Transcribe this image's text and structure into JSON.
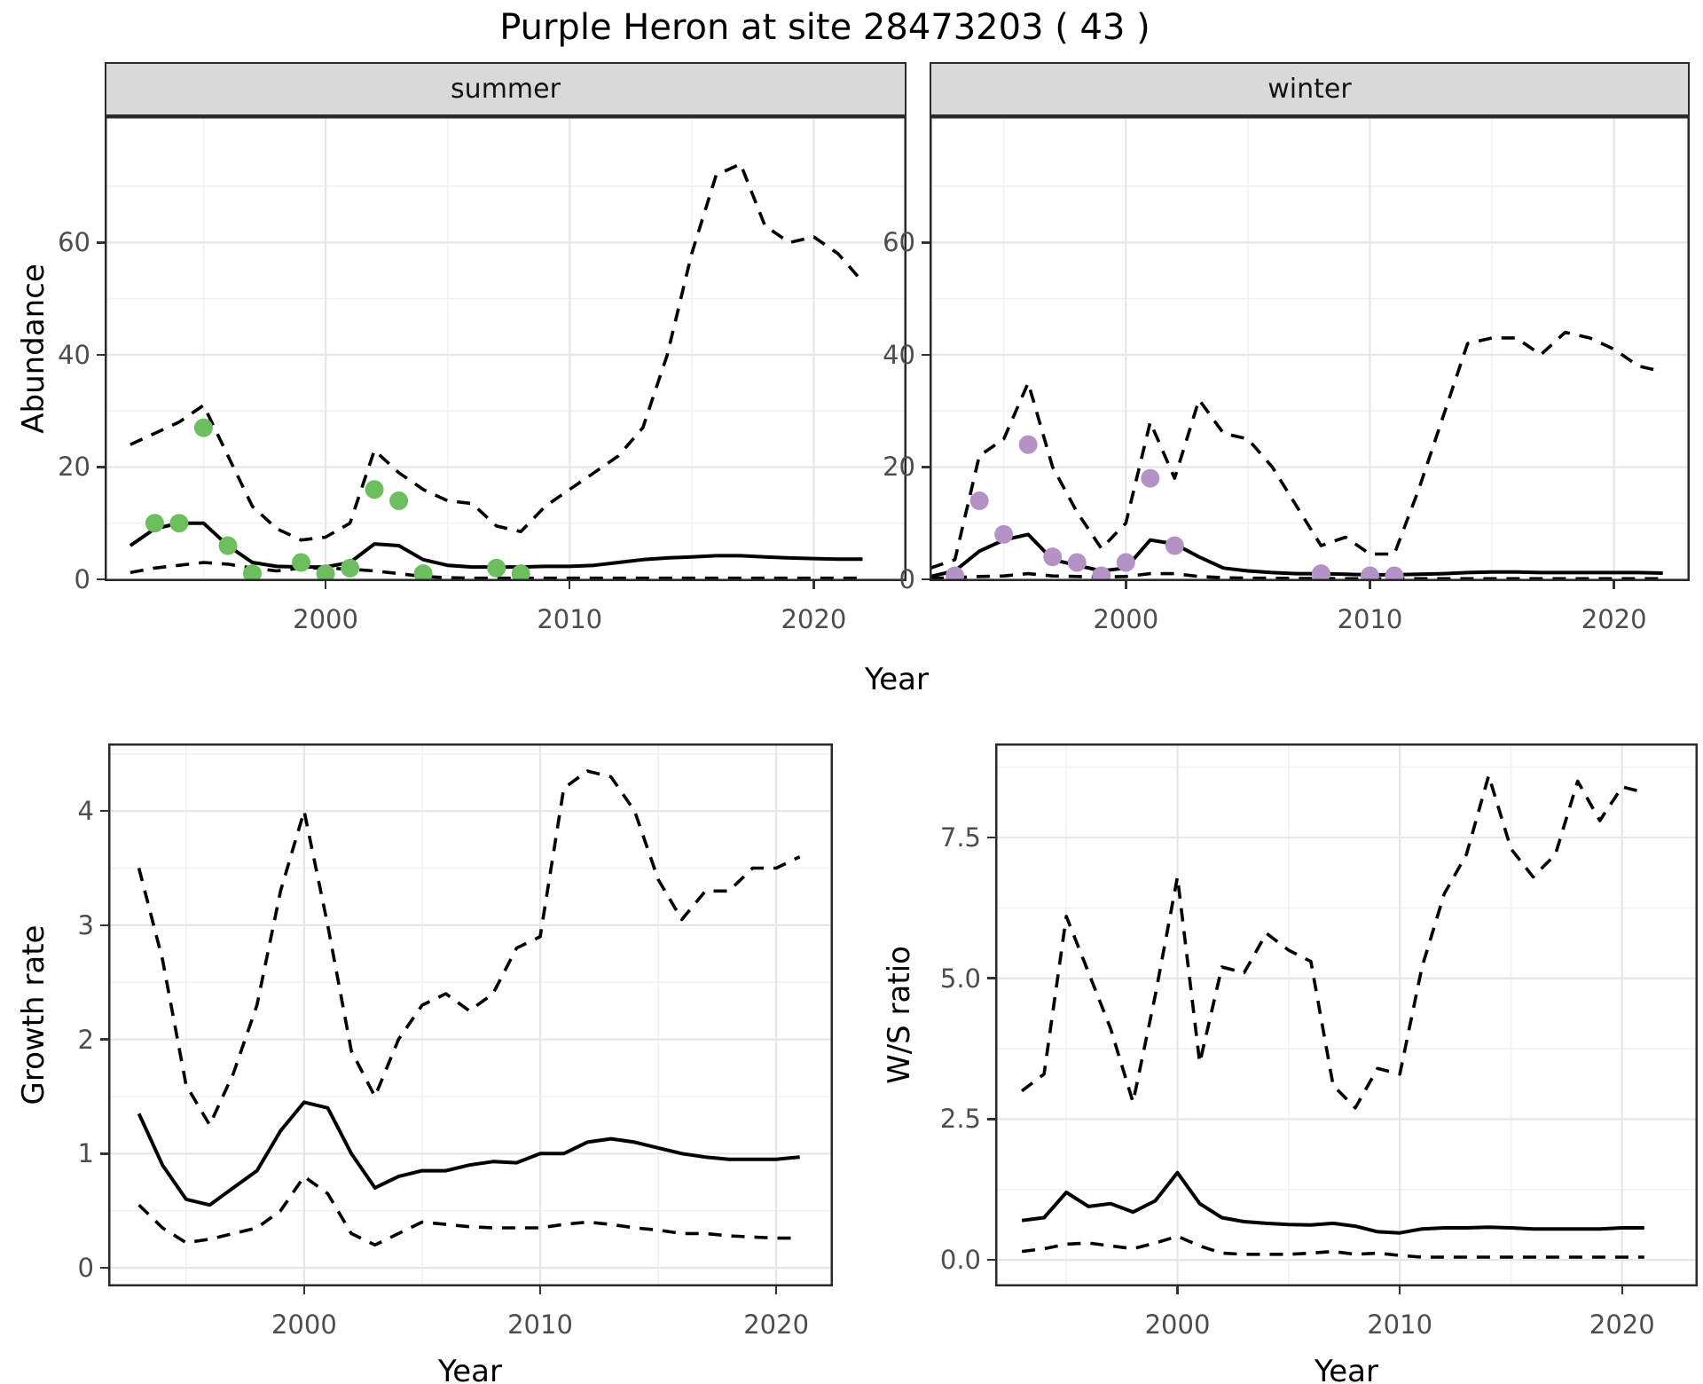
{
  "title": "Purple Heron at site 28473203 ( 43 )",
  "facets": [
    {
      "label": "summer"
    },
    {
      "label": "winter"
    }
  ],
  "axes": {
    "x_label": "Year",
    "abundance_label": "Abundance",
    "growth_label": "Growth rate",
    "ws_label": "W/S ratio"
  },
  "colors": {
    "line": "#000000",
    "summer_points": "#6cbe5e",
    "winter_points": "#b592c6",
    "grid_major": "#e6e6e6",
    "grid_minor": "#f1f1f1",
    "strip_bg": "#d9d9d9",
    "panel_border": "#2a2a2a",
    "axis_text": "#4d4d4d"
  },
  "chart_data": [
    {
      "id": "abundance-summer",
      "type": "line",
      "strip": "summer",
      "xlabel": "Year",
      "ylabel": "Abundance",
      "xlim": [
        1990.95,
        2023.8
      ],
      "ylim": [
        -0.32,
        82.5
      ],
      "x_ticks": [
        2000,
        2010,
        2020
      ],
      "x_tick_labels": [
        "2000",
        "2010",
        "2020"
      ],
      "x_minor": [
        1995,
        2005,
        2015
      ],
      "y_ticks": [
        0,
        20,
        40,
        60
      ],
      "y_tick_labels": [
        "0",
        "20",
        "40",
        "60"
      ],
      "y_minor": [
        10,
        30,
        50,
        70
      ],
      "years": [
        1992,
        1993,
        1994,
        1995,
        1996,
        1997,
        1998,
        1999,
        2000,
        2001,
        2002,
        2003,
        2004,
        2005,
        2006,
        2007,
        2008,
        2009,
        2010,
        2011,
        2012,
        2013,
        2014,
        2015,
        2016,
        2017,
        2018,
        2019,
        2020,
        2021,
        2022
      ],
      "series": [
        {
          "name": "median",
          "style": "solid",
          "values": [
            6,
            9,
            10,
            10,
            6,
            3,
            2.3,
            2.2,
            2.2,
            3,
            6.3,
            6,
            3.5,
            2.5,
            2.2,
            2.2,
            2.2,
            2.3,
            2.3,
            2.5,
            3,
            3.5,
            3.8,
            4,
            4.2,
            4.2,
            4,
            3.8,
            3.7,
            3.6,
            3.6
          ]
        },
        {
          "name": "lower_ci",
          "style": "dashed",
          "values": [
            1.2,
            2,
            2.5,
            3,
            2.7,
            2,
            1.5,
            2,
            2,
            1.8,
            1.5,
            1,
            0.5,
            0.3,
            0.2,
            0.2,
            0.2,
            0.2,
            0.2,
            0.2,
            0.2,
            0.2,
            0.2,
            0.2,
            0.2,
            0.2,
            0.2,
            0.2,
            0.2,
            0.2,
            0.2
          ]
        },
        {
          "name": "upper_ci",
          "style": "dashed",
          "values": [
            24,
            26,
            28,
            31,
            22,
            13,
            9,
            7,
            7.5,
            10,
            23,
            19,
            16,
            14,
            13.5,
            9.5,
            8.5,
            13,
            16,
            19,
            22,
            27,
            40,
            58,
            72,
            74,
            63,
            60,
            61,
            58,
            53
          ]
        }
      ],
      "observations": {
        "name": "summer-observations",
        "color": "#6cbe5e",
        "points": [
          [
            1993,
            10
          ],
          [
            1994,
            10
          ],
          [
            1995,
            27
          ],
          [
            1996,
            6
          ],
          [
            1997,
            1
          ],
          [
            1999,
            3
          ],
          [
            2000,
            1
          ],
          [
            2001,
            2
          ],
          [
            2002,
            16
          ],
          [
            2003,
            14
          ],
          [
            2004,
            1
          ],
          [
            2007,
            2
          ],
          [
            2008,
            1
          ]
        ]
      }
    },
    {
      "id": "abundance-winter",
      "type": "line",
      "strip": "winter",
      "xlabel": "Year",
      "ylabel": "Abundance",
      "xlim": [
        1991.96,
        2023.1
      ],
      "ylim": [
        -0.32,
        82.5
      ],
      "x_ticks": [
        2000,
        2010,
        2020
      ],
      "x_tick_labels": [
        "2000",
        "2010",
        "2020"
      ],
      "x_minor": [
        1995,
        2005,
        2015
      ],
      "y_ticks": [
        0,
        20,
        40,
        60
      ],
      "y_tick_labels": [
        "0",
        "20",
        "40",
        "60"
      ],
      "y_minor": [
        10,
        30,
        50,
        70
      ],
      "years": [
        1992,
        1993,
        1994,
        1995,
        1996,
        1997,
        1998,
        1999,
        2000,
        2001,
        2002,
        2003,
        2004,
        2005,
        2006,
        2007,
        2008,
        2009,
        2010,
        2011,
        2012,
        2013,
        2014,
        2015,
        2016,
        2017,
        2018,
        2019,
        2020,
        2021,
        2022
      ],
      "series": [
        {
          "name": "median",
          "style": "solid",
          "values": [
            0.5,
            1.5,
            5,
            7,
            8,
            3.5,
            2.5,
            1.5,
            2,
            7,
            6.3,
            4,
            2,
            1.5,
            1.2,
            1,
            1,
            0.9,
            0.8,
            0.8,
            0.9,
            1,
            1.2,
            1.3,
            1.3,
            1.2,
            1.2,
            1.2,
            1.2,
            1.2,
            1.1
          ]
        },
        {
          "name": "lower_ci",
          "style": "dashed",
          "values": [
            0.15,
            0.3,
            0.5,
            0.6,
            1,
            0.6,
            0.5,
            0.4,
            0.5,
            1,
            1,
            0.5,
            0.3,
            0.2,
            0.2,
            0.15,
            0.15,
            0.1,
            0.1,
            0.1,
            0.1,
            0.1,
            0.1,
            0.1,
            0.1,
            0.1,
            0.1,
            0.1,
            0.1,
            0.1,
            0.1
          ]
        },
        {
          "name": "upper_ci",
          "style": "dashed",
          "values": [
            2,
            3.5,
            22,
            25,
            35,
            20,
            12,
            5.5,
            10,
            28,
            18,
            32,
            26,
            25,
            20,
            13,
            6,
            7.5,
            4.5,
            4.5,
            16,
            29,
            42,
            43,
            43,
            40,
            44,
            43,
            41,
            38,
            37
          ]
        }
      ],
      "observations": {
        "name": "winter-observations",
        "color": "#b592c6",
        "points": [
          [
            1993,
            0
          ],
          [
            1994,
            14
          ],
          [
            1995,
            8
          ],
          [
            1996,
            24
          ],
          [
            1997,
            4
          ],
          [
            1998,
            3
          ],
          [
            1999,
            0
          ],
          [
            2000,
            3
          ],
          [
            2001,
            18
          ],
          [
            2002,
            6
          ],
          [
            2008,
            1
          ],
          [
            2010,
            0
          ],
          [
            2011,
            0
          ]
        ]
      }
    },
    {
      "id": "growth-rate",
      "type": "line",
      "strip": null,
      "xlabel": "Year",
      "ylabel": "Growth rate",
      "xlim": [
        1991.7,
        2022.4
      ],
      "ylim": [
        -0.163,
        4.592
      ],
      "x_ticks": [
        2000,
        2010,
        2020
      ],
      "x_tick_labels": [
        "2000",
        "2010",
        "2020"
      ],
      "x_minor": [
        1995,
        2005,
        2015
      ],
      "y_ticks": [
        0,
        1,
        2,
        3,
        4
      ],
      "y_tick_labels": [
        "0",
        "1",
        "2",
        "3",
        "4"
      ],
      "y_minor": [
        0.5,
        1.5,
        2.5,
        3.5,
        4.5
      ],
      "years": [
        1993,
        1994,
        1995,
        1996,
        1997,
        1998,
        1999,
        2000,
        2001,
        2002,
        2003,
        2004,
        2005,
        2006,
        2007,
        2008,
        2009,
        2010,
        2011,
        2012,
        2013,
        2014,
        2015,
        2016,
        2017,
        2018,
        2019,
        2020,
        2021
      ],
      "series": [
        {
          "name": "median",
          "style": "solid",
          "values": [
            1.35,
            0.9,
            0.6,
            0.55,
            0.7,
            0.85,
            1.2,
            1.45,
            1.4,
            1.0,
            0.7,
            0.8,
            0.85,
            0.85,
            0.9,
            0.93,
            0.92,
            1.0,
            1.0,
            1.1,
            1.13,
            1.1,
            1.05,
            1.0,
            0.97,
            0.95,
            0.95,
            0.95,
            0.97
          ]
        },
        {
          "name": "lower_ci",
          "style": "dashed",
          "values": [
            0.55,
            0.35,
            0.22,
            0.25,
            0.3,
            0.35,
            0.5,
            0.8,
            0.65,
            0.3,
            0.2,
            0.3,
            0.4,
            0.38,
            0.36,
            0.35,
            0.35,
            0.35,
            0.38,
            0.4,
            0.38,
            0.35,
            0.33,
            0.3,
            0.3,
            0.28,
            0.27,
            0.26,
            0.26
          ]
        },
        {
          "name": "upper_ci",
          "style": "dashed",
          "values": [
            3.5,
            2.7,
            1.6,
            1.25,
            1.7,
            2.3,
            3.3,
            4.0,
            3.0,
            1.9,
            1.5,
            2.0,
            2.3,
            2.4,
            2.25,
            2.4,
            2.8,
            2.9,
            4.2,
            4.35,
            4.3,
            4.0,
            3.4,
            3.05,
            3.3,
            3.3,
            3.5,
            3.5,
            3.6
          ]
        }
      ],
      "observations": null
    },
    {
      "id": "ws-ratio",
      "type": "line",
      "strip": null,
      "xlabel": "Year",
      "ylabel": "W/S ratio",
      "xlim": [
        1991.8,
        2023.4
      ],
      "ylim": [
        -0.47,
        9.17
      ],
      "x_ticks": [
        2000,
        2010,
        2020
      ],
      "x_tick_labels": [
        "2000",
        "2010",
        "2020"
      ],
      "x_minor": [
        1995,
        2005,
        2015
      ],
      "y_ticks": [
        0,
        2.5,
        5,
        7.5
      ],
      "y_tick_labels": [
        "0.0",
        "2.5",
        "5.0",
        "7.5"
      ],
      "y_minor": [
        1.25,
        3.75,
        6.25,
        8.75
      ],
      "years": [
        1993,
        1994,
        1995,
        1996,
        1997,
        1998,
        1999,
        2000,
        2001,
        2002,
        2003,
        2004,
        2005,
        2006,
        2007,
        2008,
        2009,
        2010,
        2011,
        2012,
        2013,
        2014,
        2015,
        2016,
        2017,
        2018,
        2019,
        2020,
        2021
      ],
      "series": [
        {
          "name": "median",
          "style": "solid",
          "values": [
            0.7,
            0.75,
            1.2,
            0.95,
            1.0,
            0.85,
            1.05,
            1.55,
            1.0,
            0.75,
            0.68,
            0.65,
            0.63,
            0.62,
            0.65,
            0.6,
            0.5,
            0.48,
            0.55,
            0.57,
            0.57,
            0.58,
            0.57,
            0.55,
            0.55,
            0.55,
            0.55,
            0.57,
            0.57
          ]
        },
        {
          "name": "lower_ci",
          "style": "dashed",
          "values": [
            0.15,
            0.2,
            0.28,
            0.3,
            0.25,
            0.2,
            0.3,
            0.42,
            0.25,
            0.12,
            0.1,
            0.1,
            0.1,
            0.12,
            0.15,
            0.1,
            0.12,
            0.08,
            0.05,
            0.05,
            0.05,
            0.05,
            0.05,
            0.05,
            0.05,
            0.05,
            0.05,
            0.05,
            0.05
          ]
        },
        {
          "name": "upper_ci",
          "style": "dashed",
          "values": [
            3.0,
            3.3,
            6.1,
            5.1,
            4.1,
            2.8,
            4.7,
            6.8,
            3.5,
            5.2,
            5.1,
            5.8,
            5.5,
            5.3,
            3.1,
            2.7,
            3.4,
            3.3,
            5.2,
            6.5,
            7.2,
            8.6,
            7.3,
            6.8,
            7.2,
            8.5,
            7.8,
            8.4,
            8.3
          ]
        }
      ],
      "observations": null
    }
  ]
}
